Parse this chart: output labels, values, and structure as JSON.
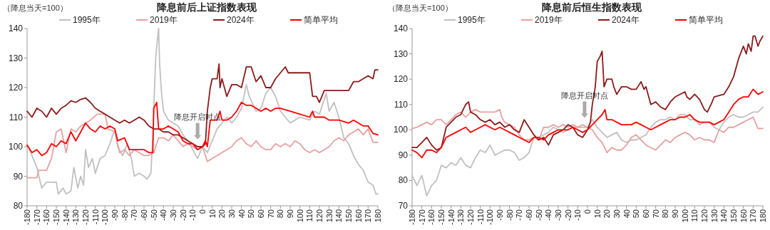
{
  "chart_data": [
    {
      "type": "line",
      "title": "降息前后上证指数表现",
      "ylabel": "（降息当天=100）",
      "xlim": [
        -180,
        180
      ],
      "xticks": [
        -180,
        -170,
        -160,
        -150,
        -140,
        -130,
        -120,
        -110,
        -100,
        -90,
        -80,
        -70,
        -60,
        -50,
        -40,
        -30,
        -20,
        -10,
        0,
        10,
        20,
        30,
        40,
        50,
        60,
        70,
        80,
        90,
        100,
        110,
        120,
        130,
        140,
        150,
        160,
        170,
        180
      ],
      "ylim": [
        80,
        140
      ],
      "yticks": [
        80,
        90,
        100,
        110,
        120,
        130,
        140
      ],
      "legend": "top",
      "grid": false,
      "line_style": "solid",
      "annotations": [
        {
          "text": "降息开启时点",
          "x": -5,
          "y": 101
        }
      ],
      "series": [
        {
          "name": "1995年",
          "color": "#c0c0c0",
          "x": [
            -180,
            -170,
            -165,
            -160,
            -150,
            -148,
            -143,
            -140,
            -135,
            -132,
            -128,
            -125,
            -122,
            -120,
            -117,
            -113,
            -110,
            -105,
            -100,
            -95,
            -90,
            -87,
            -82,
            -77,
            -73,
            -70,
            -65,
            -60,
            -57,
            -53,
            -51,
            -50,
            -48,
            -47,
            -45,
            -44,
            -42,
            -40,
            -35,
            -30,
            -25,
            -20,
            -15,
            -10,
            -5,
            0,
            5,
            10,
            15,
            20,
            25,
            30,
            35,
            40,
            45,
            48,
            55,
            60,
            65,
            70,
            75,
            80,
            85,
            90,
            100,
            110,
            115,
            120,
            127,
            130,
            135,
            140,
            145,
            150,
            155,
            160,
            165,
            170,
            175,
            178,
            180
          ],
          "values": [
            101,
            93,
            86,
            88,
            88,
            84,
            86,
            84,
            85,
            93,
            86,
            90,
            87,
            99,
            93,
            96,
            91,
            96,
            97,
            101,
            106,
            100,
            97,
            101,
            96,
            90,
            91,
            90,
            89,
            91,
            103,
            113,
            130,
            134,
            140,
            128,
            118,
            112,
            109,
            108,
            107,
            104,
            102,
            99,
            96,
            100,
            98,
            102,
            106,
            108,
            110,
            108,
            110,
            113,
            121,
            117,
            112,
            113,
            118,
            120,
            117,
            112,
            110,
            108,
            110,
            109,
            112,
            111,
            118,
            112,
            115,
            110,
            103,
            101,
            97,
            94,
            92,
            88,
            87,
            84,
            84
          ]
        },
        {
          "name": "2019年",
          "color": "#e8a0a0",
          "x": [
            -180,
            -170,
            -168,
            -160,
            -155,
            -150,
            -145,
            -140,
            -135,
            -130,
            -125,
            -115,
            -108,
            -100,
            -97,
            -90,
            -85,
            -80,
            -75,
            -70,
            -60,
            -55,
            -50,
            -45,
            -40,
            -35,
            -30,
            -25,
            -20,
            -15,
            -10,
            -5,
            0,
            5,
            10,
            15,
            20,
            25,
            30,
            35,
            40,
            45,
            50,
            55,
            60,
            65,
            70,
            75,
            80,
            85,
            90,
            95,
            100,
            105,
            110,
            115,
            120,
            125,
            130,
            135,
            140,
            145,
            150,
            155,
            160,
            165,
            170,
            175,
            180
          ],
          "values": [
            89.5,
            89.5,
            92,
            92,
            96,
            105,
            106,
            98,
            106,
            105,
            107,
            109,
            111,
            111,
            106,
            105,
            98,
            99,
            97,
            99,
            97,
            97,
            98,
            103,
            103,
            102,
            104,
            102,
            100,
            101,
            100,
            99,
            100,
            95,
            96,
            97,
            98,
            99,
            100,
            102,
            103,
            101,
            100,
            102,
            100,
            99,
            99,
            101,
            100,
            101,
            100,
            102,
            101,
            99,
            98,
            99,
            98,
            99,
            100,
            102,
            103,
            102,
            104,
            105,
            106,
            104,
            106,
            101.5,
            101.5
          ]
        },
        {
          "name": "2024年",
          "color": "#8b1a1a",
          "x": [
            -180,
            -175,
            -170,
            -165,
            -160,
            -155,
            -150,
            -145,
            -140,
            -135,
            -130,
            -125,
            -120,
            -115,
            -110,
            -105,
            -100,
            -95,
            -90,
            -85,
            -80,
            -75,
            -70,
            -65,
            -60,
            -55,
            -50,
            -45,
            -40,
            -35,
            -30,
            -25,
            -20,
            -15,
            -10,
            -5,
            0,
            3,
            5,
            8,
            10,
            15,
            17,
            18,
            20,
            25,
            30,
            35,
            40,
            45,
            50,
            55,
            60,
            65,
            70,
            75,
            80,
            85,
            88,
            95,
            105,
            110,
            113,
            117,
            120,
            125,
            130,
            140,
            150,
            155,
            160,
            165,
            170,
            175,
            177,
            180
          ],
          "values": [
            112,
            110,
            113,
            112,
            110,
            113,
            111,
            113,
            114,
            115.5,
            115,
            116,
            116.5,
            115,
            113,
            112,
            111,
            110,
            109,
            108,
            109,
            108,
            109,
            110,
            109,
            107,
            106,
            106,
            105,
            105,
            104,
            104,
            103,
            102,
            101,
            100,
            100,
            101,
            112,
            120,
            123,
            123,
            128,
            120,
            123,
            117,
            121,
            121,
            120,
            127,
            127,
            122,
            124,
            120,
            120,
            123,
            125,
            127,
            125,
            125,
            125,
            125,
            117,
            117,
            115,
            119,
            119,
            119,
            119,
            122,
            122,
            123,
            124,
            123,
            126,
            126
          ]
        },
        {
          "name": "简单平均",
          "color": "#ff0000",
          "x": [
            -180,
            -175,
            -170,
            -165,
            -160,
            -155,
            -150,
            -145,
            -140,
            -135,
            -130,
            -125,
            -120,
            -115,
            -110,
            -105,
            -100,
            -95,
            -90,
            -87,
            -80,
            -75,
            -70,
            -60,
            -55,
            -51,
            -50,
            -47,
            -45,
            -40,
            -35,
            -30,
            -25,
            -20,
            -15,
            -10,
            -5,
            0,
            3,
            5,
            8,
            15,
            18,
            20,
            25,
            30,
            35,
            40,
            45,
            50,
            55,
            60,
            65,
            70,
            75,
            80,
            90,
            100,
            110,
            113,
            115,
            120,
            125,
            130,
            140,
            150,
            155,
            160,
            165,
            170,
            175,
            180
          ],
          "values": [
            100.5,
            98,
            99,
            97,
            98,
            101,
            100,
            102,
            101,
            105,
            102,
            105,
            108,
            106,
            105,
            107,
            106,
            107,
            106,
            102,
            103,
            99,
            99,
            99,
            98,
            98,
            113,
            115,
            106,
            106,
            107,
            106,
            105,
            102,
            101,
            101,
            99,
            100,
            102,
            100,
            109,
            109,
            112,
            109,
            109,
            110,
            112,
            115,
            114,
            114,
            113,
            112,
            113,
            112,
            113,
            113,
            112,
            111,
            110,
            112,
            110,
            110,
            110,
            109,
            109,
            108,
            109,
            108,
            107,
            107,
            104.5,
            104
          ]
        }
      ]
    },
    {
      "type": "line",
      "title": "降息前后恒生指数表现",
      "ylabel": "（降息当天=100）",
      "xlim": [
        -180,
        180
      ],
      "xticks": [
        -180,
        -170,
        -160,
        -150,
        -140,
        -130,
        -120,
        -110,
        -100,
        -90,
        -80,
        -70,
        -60,
        -50,
        -40,
        -30,
        -20,
        -10,
        0,
        10,
        20,
        30,
        40,
        50,
        60,
        70,
        80,
        90,
        100,
        110,
        120,
        130,
        140,
        150,
        160,
        170,
        180
      ],
      "ylim": [
        70,
        140
      ],
      "yticks": [
        70,
        80,
        90,
        100,
        110,
        120,
        130,
        140
      ],
      "legend": "top",
      "grid": false,
      "line_style": "solid",
      "annotations": [
        {
          "text": "降息开启时点",
          "x": -3,
          "y": 103
        }
      ],
      "series": [
        {
          "name": "1995年",
          "color": "#c0c0c0",
          "x": [
            -180,
            -175,
            -170,
            -165,
            -160,
            -155,
            -150,
            -145,
            -140,
            -135,
            -130,
            -125,
            -120,
            -115,
            -110,
            -105,
            -100,
            -95,
            -90,
            -85,
            -80,
            -75,
            -70,
            -65,
            -60,
            -55,
            -50,
            -45,
            -40,
            -35,
            -30,
            -25,
            -20,
            -15,
            -10,
            -5,
            0,
            5,
            10,
            15,
            20,
            25,
            30,
            35,
            40,
            45,
            50,
            55,
            60,
            65,
            70,
            75,
            80,
            85,
            90,
            95,
            100,
            105,
            110,
            115,
            120,
            125,
            130,
            135,
            140,
            145,
            150,
            155,
            160,
            165,
            170,
            175,
            180
          ],
          "values": [
            82,
            78,
            82,
            74,
            78,
            80,
            86,
            85,
            87,
            86,
            89,
            86,
            85,
            89,
            92,
            91,
            94,
            90,
            91,
            92,
            92,
            91,
            88,
            89,
            91,
            97,
            97,
            98,
            99,
            101,
            100,
            99,
            100,
            101,
            101,
            101,
            101,
            104,
            101,
            99,
            97,
            98,
            99,
            96,
            95,
            96,
            96,
            97,
            98,
            101,
            103,
            104,
            104,
            105,
            104,
            106,
            106,
            104,
            104,
            102,
            103,
            103,
            101,
            100,
            103,
            105,
            106,
            105,
            105,
            106,
            107,
            107,
            109
          ]
        },
        {
          "name": "2019年",
          "color": "#e8a0a0",
          "x": [
            -180,
            -175,
            -170,
            -165,
            -160,
            -155,
            -150,
            -145,
            -140,
            -135,
            -130,
            -125,
            -120,
            -115,
            -110,
            -105,
            -100,
            -95,
            -90,
            -88,
            -85,
            -80,
            -75,
            -70,
            -65,
            -60,
            -55,
            -50,
            -45,
            -40,
            -35,
            -30,
            -25,
            -20,
            -15,
            -10,
            -5,
            0,
            5,
            10,
            15,
            20,
            25,
            30,
            35,
            40,
            45,
            50,
            55,
            60,
            65,
            70,
            75,
            80,
            85,
            90,
            95,
            100,
            105,
            110,
            115,
            120,
            125,
            130,
            135,
            140,
            145,
            150,
            155,
            160,
            165,
            170,
            175,
            180
          ],
          "values": [
            100.5,
            101,
            102,
            103,
            102,
            104,
            104,
            102,
            104,
            106,
            107,
            105,
            107,
            108,
            107,
            107,
            107,
            107,
            108,
            105,
            103,
            102,
            101,
            98,
            96,
            96,
            97,
            96,
            101,
            101,
            102,
            101,
            102,
            101,
            102,
            101,
            102,
            101,
            100,
            97,
            95,
            91,
            93,
            92,
            92,
            94,
            97,
            98,
            96,
            94,
            93,
            92,
            94,
            96,
            95,
            97,
            98,
            99,
            98,
            96,
            97,
            96,
            96,
            95,
            100,
            99,
            101,
            101,
            102,
            103,
            104,
            105,
            100.5,
            100.5
          ]
        },
        {
          "name": "2024年",
          "color": "#8b1a1a",
          "x": [
            -180,
            -175,
            -170,
            -165,
            -160,
            -155,
            -150,
            -145,
            -140,
            -135,
            -130,
            -125,
            -122,
            -120,
            -115,
            -110,
            -105,
            -100,
            -95,
            -90,
            -85,
            -80,
            -75,
            -70,
            -65,
            -60,
            -55,
            -50,
            -45,
            -40,
            -35,
            -30,
            -25,
            -20,
            -15,
            -10,
            -5,
            0,
            3,
            5,
            8,
            10,
            13,
            15,
            17,
            20,
            25,
            27,
            30,
            35,
            40,
            45,
            50,
            55,
            58,
            60,
            65,
            70,
            75,
            80,
            85,
            90,
            95,
            100,
            102,
            105,
            110,
            115,
            120,
            123,
            128,
            130,
            140,
            145,
            150,
            155,
            160,
            163,
            165,
            168,
            170,
            172,
            175,
            177,
            180
          ],
          "values": [
            93,
            93,
            95,
            97,
            94,
            92,
            93,
            101,
            103,
            105,
            106,
            110,
            111,
            107,
            106,
            104,
            103,
            104,
            102,
            103,
            101,
            102,
            100,
            99,
            104,
            101,
            98,
            96,
            97,
            94,
            98,
            99,
            100,
            102,
            101,
            98,
            97,
            100,
            103,
            110,
            117,
            127,
            129,
            131,
            117,
            120,
            120,
            117,
            114,
            117,
            117,
            116,
            116,
            119,
            116,
            117,
            110,
            111,
            109,
            108,
            111,
            113,
            114,
            115,
            113,
            112,
            114,
            112,
            108,
            107,
            111,
            113,
            114,
            117,
            121,
            128,
            133,
            130,
            134,
            131,
            137,
            137,
            133,
            135,
            137
          ]
        },
        {
          "name": "简单平均",
          "color": "#ff0000",
          "x": [
            -180,
            -175,
            -170,
            -165,
            -160,
            -155,
            -150,
            -145,
            -140,
            -135,
            -130,
            -125,
            -120,
            -115,
            -110,
            -105,
            -100,
            -95,
            -90,
            -85,
            -80,
            -75,
            -70,
            -65,
            -60,
            -55,
            -50,
            -45,
            -40,
            -35,
            -30,
            -25,
            -20,
            -15,
            -10,
            -5,
            0,
            5,
            10,
            15,
            18,
            20,
            25,
            30,
            35,
            40,
            45,
            50,
            55,
            60,
            65,
            70,
            75,
            80,
            85,
            90,
            95,
            100,
            105,
            110,
            115,
            120,
            125,
            130,
            135,
            140,
            145,
            150,
            155,
            160,
            165,
            170,
            175,
            180
          ],
          "values": [
            92,
            91,
            89,
            92,
            92,
            91,
            93,
            97,
            98,
            99,
            100,
            101,
            99,
            100,
            101,
            102,
            101,
            100,
            101,
            100,
            99,
            98,
            97,
            96,
            95,
            97,
            97,
            96,
            98,
            99,
            100,
            100,
            100,
            101,
            100,
            99,
            100,
            102,
            104,
            106,
            108,
            104,
            104,
            103,
            102,
            102,
            102,
            103,
            102,
            101,
            100,
            101,
            102,
            103,
            104,
            104,
            105,
            105,
            106,
            104,
            103,
            103,
            103,
            102,
            103,
            104,
            107,
            110,
            112,
            113,
            113,
            116,
            114,
            115
          ]
        }
      ]
    }
  ]
}
